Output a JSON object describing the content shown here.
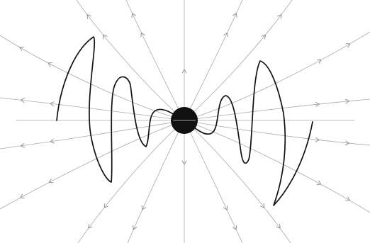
{
  "diagram": {
    "kind": "field-lines-with-waveform",
    "central_object": "black-disk",
    "field_direction": "outward",
    "colors": {
      "background": "#ffffff",
      "field_lines": "#a9a9a9",
      "arrows": "#8c8c8c",
      "waveform": "#111111",
      "central_object": "#111111"
    }
  }
}
